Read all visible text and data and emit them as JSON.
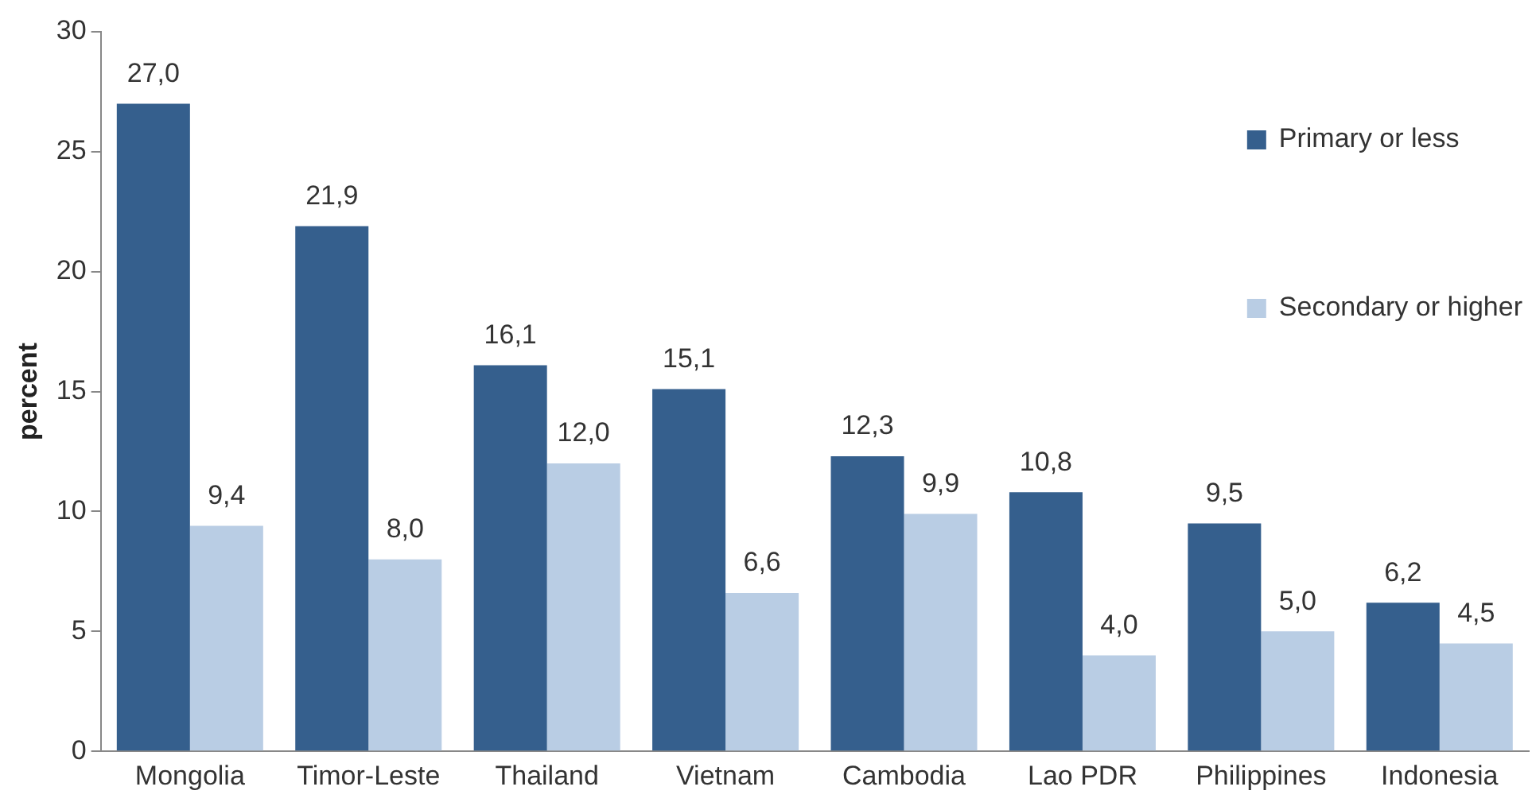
{
  "chart_data": {
    "type": "bar",
    "ylabel": "percent",
    "categories": [
      "Mongolia",
      "Timor-Leste",
      "Thailand",
      "Vietnam",
      "Cambodia",
      "Lao PDR",
      "Philippines",
      "Indonesia"
    ],
    "series": [
      {
        "name": "Primary or less",
        "color": "#355f8d",
        "values": [
          27.0,
          21.9,
          16.1,
          15.1,
          12.3,
          10.8,
          9.5,
          6.2
        ],
        "value_labels": [
          "27,0",
          "21,9",
          "16,1",
          "15,1",
          "12,3",
          "10,8",
          "9,5",
          "6,2"
        ]
      },
      {
        "name": "Secondary or higher",
        "color": "#b9cde4",
        "values": [
          9.4,
          8.0,
          12.0,
          6.6,
          9.9,
          4.0,
          5.0,
          4.5
        ],
        "value_labels": [
          "9,4",
          "8,0",
          "12,0",
          "6,6",
          "9,9",
          "4,0",
          "5,0",
          "4,5"
        ]
      }
    ],
    "ylim": [
      0,
      30
    ],
    "yticks": [
      0,
      5,
      10,
      15,
      20,
      25,
      30
    ],
    "grid": false,
    "legend": "top right"
  }
}
